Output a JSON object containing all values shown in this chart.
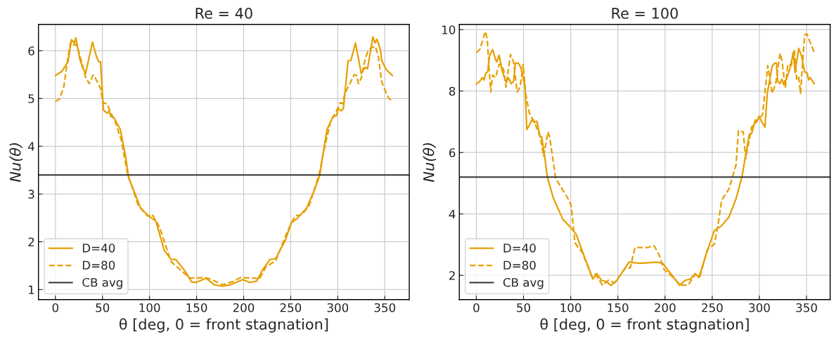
{
  "chart_data": [
    {
      "type": "line",
      "title": "Re = 40",
      "xlabel": "θ [deg, 0 = front stagnation]",
      "ylabel": "Nu(θ)",
      "xlim": [
        -18,
        376
      ],
      "ylim": [
        0.79,
        6.55
      ],
      "xticks": [
        0,
        50,
        100,
        150,
        200,
        250,
        300,
        350
      ],
      "yticks": [
        1,
        2,
        3,
        4,
        5,
        6
      ],
      "grid": true,
      "legend": "bottom left",
      "series": [
        {
          "name": "D=40",
          "color": "#e69f00",
          "line_style": "solid",
          "x": [
            0,
            7,
            13.4,
            17,
            20,
            21.7,
            26,
            28.5,
            32,
            39.4,
            43.7,
            46,
            48,
            51,
            55,
            57,
            59,
            62.6,
            69,
            75,
            77.8,
            82.8,
            90.4,
            99,
            106.8,
            115.7,
            123,
            128,
            138,
            144.7,
            149.7,
            160,
            168.7,
            177.5,
            186,
            199,
            206.6,
            214,
            220,
            228,
            234,
            244,
            250.8,
            257,
            267,
            274.7,
            281,
            283.6,
            288.6,
            295,
            298.7,
            300.5,
            303.8,
            306,
            311,
            313.9,
            318.9,
            325,
            329,
            331.6,
            337.4,
            339.6,
            341.7,
            345.5,
            346.7,
            351.8,
            358
          ],
          "values": [
            5.48,
            5.57,
            5.77,
            6.23,
            6.16,
            6.27,
            5.82,
            5.67,
            5.52,
            6.18,
            5.87,
            5.77,
            5.77,
            4.76,
            4.69,
            4.74,
            4.62,
            4.59,
            4.35,
            3.74,
            3.34,
            3.1,
            2.71,
            2.54,
            2.43,
            1.82,
            1.63,
            1.63,
            1.38,
            1.16,
            1.15,
            1.24,
            1.1,
            1.07,
            1.1,
            1.21,
            1.15,
            1.18,
            1.41,
            1.63,
            1.65,
            2.02,
            2.4,
            2.49,
            2.71,
            3.06,
            3.4,
            3.74,
            4.35,
            4.62,
            4.64,
            4.79,
            4.74,
            4.79,
            5.79,
            5.79,
            6.16,
            5.52,
            5.65,
            5.62,
            6.29,
            6.16,
            6.24,
            6.01,
            5.79,
            5.6,
            5.48
          ]
        },
        {
          "name": "D=80",
          "color": "#e69f00",
          "line_style": "dashed",
          "x": [
            0,
            4.5,
            9,
            12.6,
            15.9,
            18,
            21.7,
            24.7,
            28.5,
            32,
            36,
            40,
            42.4,
            48,
            50.5,
            55,
            59,
            62.6,
            70,
            76.5,
            88,
            98,
            103,
            110.6,
            123,
            133,
            143,
            158.6,
            165,
            177.5,
            189,
            196.5,
            211.6,
            216.7,
            224,
            234,
            247,
            254.5,
            262,
            269.7,
            280,
            285,
            292.4,
            298.7,
            302.5,
            305,
            307.6,
            312.6,
            317.7,
            320,
            322,
            325,
            327.8,
            331.6,
            335.4,
            340,
            343,
            346.7,
            350.5,
            354,
            358
          ],
          "values": [
            4.94,
            4.99,
            5.25,
            5.77,
            6.16,
            6.1,
            6.14,
            5.99,
            5.72,
            5.45,
            5.31,
            5.49,
            5.43,
            5.21,
            4.91,
            4.89,
            4.69,
            4.57,
            4.13,
            3.44,
            2.76,
            2.54,
            2.57,
            2.31,
            1.58,
            1.41,
            1.24,
            1.25,
            1.22,
            1.1,
            1.17,
            1.25,
            1.24,
            1.22,
            1.48,
            1.6,
            2.24,
            2.54,
            2.57,
            2.76,
            3.4,
            3.88,
            4.52,
            4.74,
            4.91,
            4.89,
            5.11,
            5.3,
            5.5,
            5.48,
            5.31,
            5.43,
            5.72,
            5.97,
            6.06,
            6.09,
            5.89,
            5.35,
            5.16,
            5.01,
            4.94
          ]
        }
      ],
      "ref_lines": [
        {
          "axis": "y",
          "value": 3.4,
          "label": "CB avg",
          "color": "#333333",
          "line_style": "solid"
        }
      ]
    },
    {
      "type": "line",
      "title": "Re = 100",
      "xlabel": "θ [deg, 0 = front stagnation]",
      "ylabel": "Nu(θ)",
      "xlim": [
        -18,
        375
      ],
      "ylim": [
        1.21,
        10.17
      ],
      "xticks": [
        0,
        50,
        100,
        150,
        200,
        250,
        300,
        350
      ],
      "yticks": [
        2,
        4,
        6,
        8,
        10
      ],
      "grid": true,
      "legend": "bottom left",
      "series": [
        {
          "name": "D=40",
          "color": "#e69f00",
          "line_style": "solid",
          "x": [
            0,
            3.8,
            6.4,
            8.2,
            10.2,
            12,
            14,
            17.3,
            20.4,
            21.7,
            24.2,
            26.8,
            30.6,
            31.9,
            33.9,
            37,
            39.5,
            41.5,
            44.6,
            47.2,
            51.5,
            53.5,
            56,
            58.6,
            61.7,
            64.2,
            67.6,
            69.3,
            72.6,
            75.2,
            81.6,
            91.8,
            99.4,
            105.8,
            114.7,
            123.6,
            127.5,
            132.6,
            137.6,
            142.7,
            149,
            161.9,
            173.3,
            191.2,
            197.6,
            206.5,
            215.4,
            221.7,
            226.9,
            232,
            235.8,
            244.7,
            252.3,
            260,
            267.6,
            275.2,
            281.7,
            285.5,
            289.3,
            291.9,
            295.7,
            297,
            299.5,
            302.8,
            305.9,
            308.4,
            311,
            313.5,
            316,
            318.1,
            319.4,
            321.7,
            323.7,
            325.8,
            328.8,
            332.6,
            336,
            337.8,
            341.6,
            344.6,
            347.9,
            350.5,
            352.3,
            353.8,
            358.1
          ],
          "values": [
            8.23,
            8.32,
            8.44,
            8.36,
            8.6,
            8.62,
            9.15,
            9.35,
            9.03,
            8.95,
            9.17,
            8.72,
            8.36,
            8.28,
            8.44,
            8.24,
            8.32,
            8.91,
            8.91,
            8.76,
            8.17,
            6.75,
            6.87,
            7.06,
            6.98,
            7.02,
            6.51,
            6.51,
            5.84,
            5.21,
            4.52,
            3.82,
            3.58,
            3.34,
            2.59,
            1.88,
            2.06,
            1.84,
            1.8,
            1.67,
            1.84,
            2.43,
            2.39,
            2.43,
            2.39,
            2.04,
            1.68,
            1.84,
            1.88,
            2.06,
            1.93,
            2.79,
            3.46,
            3.62,
            3.89,
            4.49,
            5.23,
            5.92,
            6.59,
            6.63,
            7.06,
            6.98,
            7.18,
            6.98,
            6.83,
            7.93,
            8.36,
            8.8,
            8.91,
            8.91,
            8.32,
            8.24,
            8.39,
            8.2,
            8.4,
            8.76,
            9.27,
            8.6,
            9.39,
            9.15,
            8.62,
            8.6,
            8.36,
            8.44,
            8.24
          ]
        },
        {
          "name": "D=80",
          "color": "#e69f00",
          "line_style": "dashed",
          "x": [
            0,
            3.8,
            9.7,
            11.5,
            15.3,
            17.3,
            20.4,
            24.2,
            26.8,
            29.3,
            31.4,
            36.2,
            39.5,
            43.3,
            46.4,
            49.7,
            52.3,
            56,
            58.6,
            61.2,
            67.6,
            71.4,
            75.9,
            77.7,
            84.1,
            98.1,
            100.7,
            104.5,
            112.2,
            122.4,
            126.2,
            133.8,
            140.2,
            146.6,
            158,
            163.1,
            168.2,
            179.7,
            188.6,
            193.7,
            198.8,
            209,
            216.7,
            224.3,
            232,
            237,
            244.7,
            252.3,
            256.2,
            260,
            267.6,
            275.2,
            277.8,
            282.9,
            285.5,
            291.9,
            297,
            303.3,
            308.9,
            313.5,
            317.3,
            321.9,
            323.7,
            327.5,
            330.1,
            333.9,
            337,
            339.6,
            341.6,
            343.6,
            347.9,
            350.5,
            353.8,
            358.1
          ],
          "values": [
            9.25,
            9.36,
            9.94,
            9.7,
            7.97,
            8.52,
            8.44,
            8.87,
            8.86,
            8.64,
            8.13,
            9.19,
            8.95,
            7.97,
            8.13,
            8.87,
            7.93,
            7.3,
            7.14,
            7.02,
            6.51,
            5.88,
            6.67,
            6.51,
            5.16,
            4.45,
            4.25,
            3.06,
            2.75,
            1.96,
            2.03,
            1.68,
            1.84,
            1.76,
            2.24,
            2.24,
            2.91,
            2.9,
            2.96,
            2.67,
            2.2,
            1.92,
            1.68,
            1.68,
            2.03,
            1.96,
            2.83,
            3.02,
            3.66,
            4.45,
            4.8,
            5.59,
            6.71,
            6.67,
            5.8,
            6.83,
            7.02,
            7.22,
            8.83,
            7.93,
            8.24,
            9.23,
            9.03,
            8.1,
            8.87,
            8.83,
            9.31,
            8.39,
            8.48,
            7.93,
            9.82,
            9.86,
            9.58,
            9.27
          ]
        }
      ],
      "ref_lines": [
        {
          "axis": "y",
          "value": 5.2,
          "label": "CB avg",
          "color": "#333333",
          "line_style": "solid"
        }
      ]
    }
  ]
}
